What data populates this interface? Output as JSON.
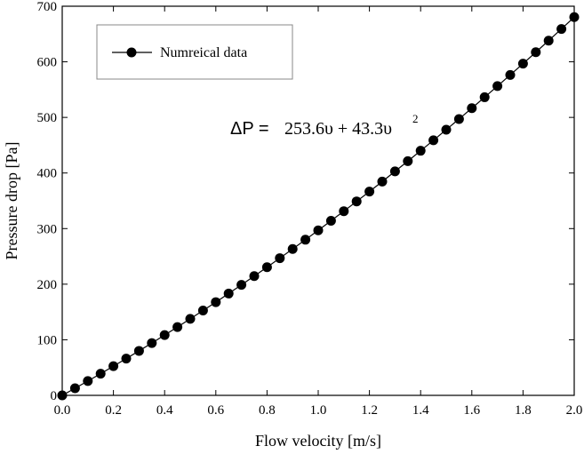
{
  "chart_data": {
    "type": "line",
    "xlabel": "Flow velocity [m/s]",
    "ylabel": "Pressure drop [Pa]",
    "xlim": [
      0.0,
      2.0
    ],
    "ylim": [
      0,
      700
    ],
    "x_ticks": [
      "0.0",
      "0.2",
      "0.4",
      "0.6",
      "0.8",
      "1.0",
      "1.2",
      "1.4",
      "1.6",
      "1.8",
      "2.0"
    ],
    "y_ticks": [
      "0",
      "100",
      "200",
      "300",
      "400",
      "500",
      "600",
      "700"
    ],
    "grid": false,
    "legend_position": "top-left",
    "series": [
      {
        "name": "Numreical data",
        "color": "#000000",
        "marker": "filled-circle",
        "x": [
          0.0,
          0.05,
          0.1,
          0.15,
          0.2,
          0.25,
          0.3,
          0.35,
          0.4,
          0.45,
          0.5,
          0.55,
          0.6,
          0.65,
          0.7,
          0.75,
          0.8,
          0.85,
          0.9,
          0.95,
          1.0,
          1.05,
          1.1,
          1.15,
          1.2,
          1.25,
          1.3,
          1.35,
          1.4,
          1.45,
          1.5,
          1.55,
          1.6,
          1.65,
          1.7,
          1.75,
          1.8,
          1.85,
          1.9,
          1.95,
          2.0
        ],
        "y": [
          0,
          12.8,
          25.8,
          39.0,
          52.5,
          66.1,
          80.0,
          94.1,
          108.4,
          122.9,
          137.6,
          152.6,
          167.7,
          183.1,
          198.7,
          214.6,
          230.6,
          246.8,
          263.3,
          280.0,
          296.9,
          314.0,
          331.3,
          348.9,
          366.6,
          384.6,
          402.9,
          421.3,
          440.0,
          458.8,
          477.9,
          497.1,
          516.6,
          536.3,
          556.3,
          576.4,
          596.7,
          617.3,
          638.1,
          659.1,
          680.4
        ]
      }
    ],
    "annotation": {
      "lhs": "ΔP =",
      "rhs": "253.6υ + 43.3υ",
      "exponent": "2"
    }
  }
}
